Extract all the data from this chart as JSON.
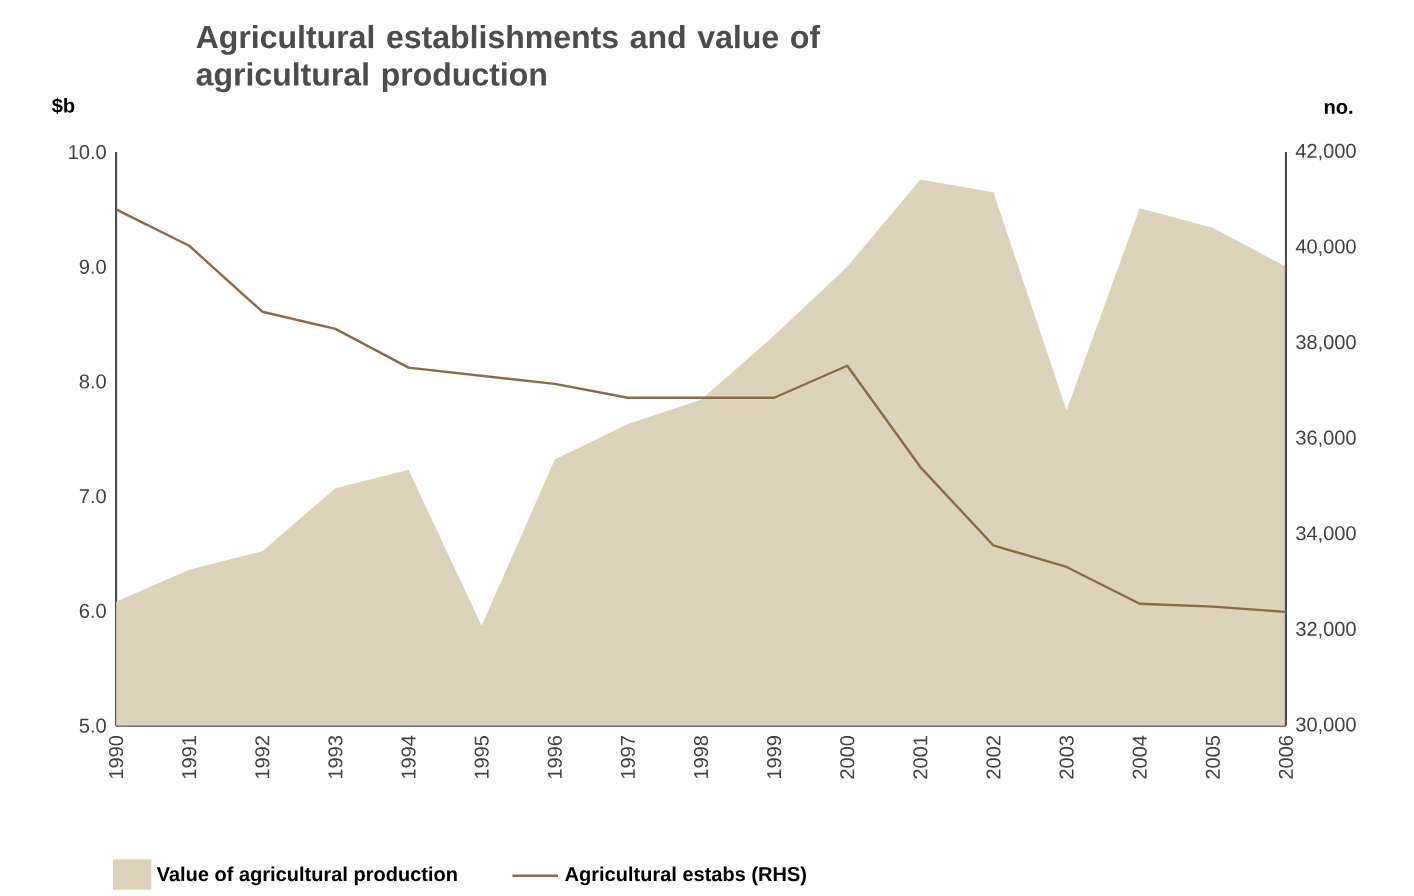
{
  "chart_data": {
    "type": "area",
    "title": "Agricultural establishments and value of agricultural production",
    "ylabel": "$b",
    "y2label": "no.",
    "categories": [
      "1990",
      "1991",
      "1992",
      "1993",
      "1994",
      "1995",
      "1996",
      "1997",
      "1998",
      "1999",
      "2000",
      "2001",
      "2002",
      "2003",
      "2004",
      "2005",
      "2006"
    ],
    "series": [
      {
        "name": "Value of agricultural production",
        "color": "#ddd3bb",
        "values": [
          6.08,
          6.36,
          6.52,
          7.07,
          7.23,
          5.87,
          7.32,
          7.63,
          7.84,
          8.4,
          9.0,
          9.76,
          9.65,
          7.75,
          9.51,
          9.34,
          9.0
        ]
      },
      {
        "name": "Agricultural estabs (RHS)",
        "type": "line",
        "axis": "y2",
        "color": "#8b6a4a",
        "values": [
          40800,
          40040,
          38660,
          38300,
          37490,
          37320,
          37150,
          36860,
          36860,
          36860,
          37530,
          35410,
          33770,
          33320,
          32550,
          32490,
          32380
        ]
      }
    ],
    "ylim": [
      5,
      10
    ],
    "yticks": [
      {
        "value": 5,
        "label": "5.0"
      },
      {
        "value": 6,
        "label": "6.0"
      },
      {
        "value": 7,
        "label": "7.0"
      },
      {
        "value": 8,
        "label": "8.0"
      },
      {
        "value": 9,
        "label": "9.0"
      },
      {
        "value": 10,
        "label": "10.0"
      }
    ],
    "y2lim": [
      30000,
      42000
    ],
    "y2ticks": [
      {
        "value": 30000,
        "label": "30,000"
      },
      {
        "value": 32000,
        "label": "32,000"
      },
      {
        "value": 34000,
        "label": "34,000"
      },
      {
        "value": 36000,
        "label": "36,000"
      },
      {
        "value": 38000,
        "label": "38,000"
      },
      {
        "value": 40000,
        "label": "40,000"
      },
      {
        "value": 42000,
        "label": "42,000"
      }
    ],
    "legend": "bottom"
  }
}
